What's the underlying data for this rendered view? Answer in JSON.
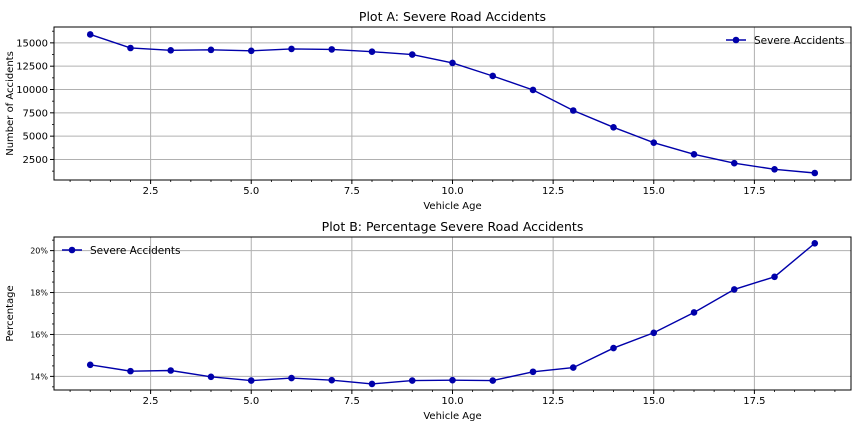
{
  "chart_data": [
    {
      "type": "line",
      "title": "Plot A: Severe Road Accidents",
      "xlabel": "Vehicle Age",
      "ylabel": "Number of Accidents",
      "xlim": [
        0.1,
        19.9
      ],
      "ylim": [
        300,
        16700
      ],
      "xticks": [
        2.5,
        5.0,
        7.5,
        10.0,
        12.5,
        15.0,
        17.5
      ],
      "xtick_labels": [
        "2.5",
        "5.0",
        "7.5",
        "10.0",
        "12.5",
        "15.0",
        "17.5"
      ],
      "yticks": [
        2500,
        5000,
        7500,
        10000,
        12500,
        15000
      ],
      "ytick_labels": [
        "2500",
        "5000",
        "7500",
        "10000",
        "12500",
        "15000"
      ],
      "grid": true,
      "legend": "top-right",
      "series": [
        {
          "name": "Severe Accidents",
          "color": "#0000aa",
          "x": [
            1,
            2,
            3,
            4,
            5,
            6,
            7,
            8,
            9,
            10,
            11,
            12,
            13,
            14,
            15,
            16,
            17,
            18,
            19
          ],
          "y": [
            15900,
            14450,
            14200,
            14250,
            14150,
            14350,
            14300,
            14050,
            13750,
            12850,
            11450,
            9950,
            7750,
            5950,
            4300,
            3050,
            2100,
            1450,
            1050
          ]
        }
      ]
    },
    {
      "type": "line",
      "title": "Plot B: Percentage Severe Road Accidents",
      "xlabel": "Vehicle Age",
      "ylabel": "Percentage",
      "xlim": [
        0.1,
        19.9
      ],
      "ylim": [
        13.35,
        20.65
      ],
      "xticks": [
        2.5,
        5.0,
        7.5,
        10.0,
        12.5,
        15.0,
        17.5
      ],
      "xtick_labels": [
        "2.5",
        "5.0",
        "7.5",
        "10.0",
        "12.5",
        "15.0",
        "17.5"
      ],
      "yticks": [
        14,
        16,
        18,
        20
      ],
      "ytick_labels": [
        "14%",
        "16%",
        "18%",
        "20%"
      ],
      "grid": true,
      "legend": "top-left",
      "series": [
        {
          "name": "Severe Accidents",
          "color": "#0000aa",
          "x": [
            1,
            2,
            3,
            4,
            5,
            6,
            7,
            8,
            9,
            10,
            11,
            12,
            13,
            14,
            15,
            16,
            17,
            18,
            19
          ],
          "y": [
            14.55,
            14.25,
            14.28,
            13.98,
            13.8,
            13.92,
            13.82,
            13.64,
            13.8,
            13.82,
            13.8,
            14.22,
            14.42,
            15.35,
            16.08,
            17.05,
            18.15,
            18.75,
            20.35
          ]
        }
      ]
    }
  ]
}
